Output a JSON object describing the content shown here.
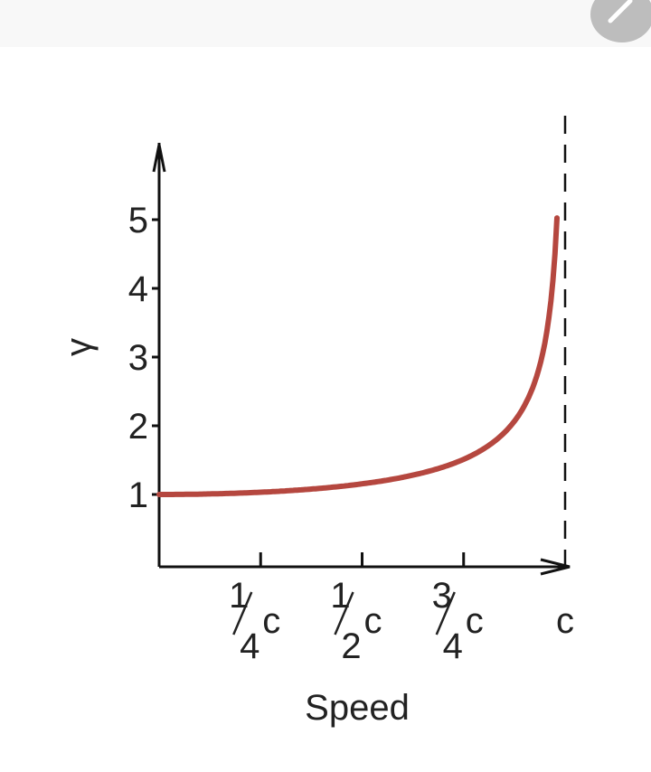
{
  "toolbar": {
    "edit_icon": "pencil-icon"
  },
  "chart_data": {
    "type": "line",
    "title": "",
    "xlabel": "Speed",
    "ylabel": "γ",
    "xlim": [
      0,
      1
    ],
    "ylim": [
      0,
      6
    ],
    "x_unit": "c",
    "x_ticks": [
      {
        "value": 0.25,
        "num": "1",
        "den": "4",
        "unit": "c"
      },
      {
        "value": 0.5,
        "num": "1",
        "den": "2",
        "unit": "c"
      },
      {
        "value": 0.75,
        "num": "3",
        "den": "4",
        "unit": "c"
      },
      {
        "value": 1.0,
        "num": "",
        "den": "",
        "unit": "c"
      }
    ],
    "y_ticks": [
      "1",
      "2",
      "3",
      "4",
      "5"
    ],
    "asymptote": {
      "x": 1.0,
      "style": "dashed"
    },
    "grid": false,
    "series": [
      {
        "formula": "1/sqrt(1-(v/c)^2)",
        "color": "#b5473f",
        "x": [
          0,
          0.25,
          0.5,
          0.75,
          0.9,
          0.95,
          0.98
        ],
        "y": [
          1.0,
          1.03,
          1.15,
          1.51,
          2.29,
          3.2,
          5.03
        ]
      }
    ]
  }
}
